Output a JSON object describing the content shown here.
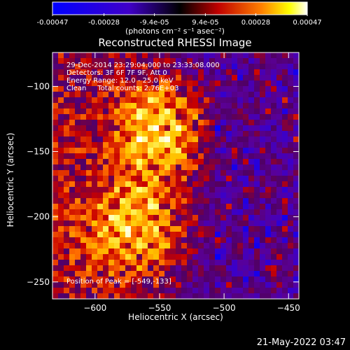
{
  "colorbar": {
    "tick_labels": [
      "-0.00047",
      "-0.00028",
      "-9.4e-05",
      "9.4e-05",
      "0.00028",
      "0.00047"
    ],
    "units_label": "(photons cm⁻² s⁻¹ asec⁻²)",
    "range": [
      -0.00047,
      0.00047
    ]
  },
  "chart_data": {
    "type": "heatmap",
    "title": "Reconstructed RHESSI Image",
    "xlabel": "Heliocentric X (arcsec)",
    "ylabel": "Heliocentric Y (arcsec)",
    "xlim": [
      -633,
      -442
    ],
    "ylim": [
      -263,
      -74
    ],
    "x_ticks": [
      -600,
      -550,
      -500,
      -450
    ],
    "x_tick_labels": [
      "−600",
      "−550",
      "−500",
      "−450"
    ],
    "y_ticks": [
      -100,
      -150,
      -200,
      -250
    ],
    "y_tick_labels": [
      "−100",
      "−150",
      "−200",
      "−250"
    ],
    "peak": {
      "x": -549,
      "y": -133
    },
    "colormap": "rhessi-blue-purple-red-yellow-white",
    "colors": [
      "#0000ff",
      "#5a00c8",
      "#500080",
      "#c80000",
      "#ff8000",
      "#ffff00",
      "#ffffff"
    ]
  },
  "annotations": {
    "time_range": "29-Dec-2014 23:29:04.000 to 23:33:08.000",
    "detectors": "Detectors: 3F 6F 7F 9F, Att 0",
    "energy": "Energy Range: 12.0 - 25.0 keV",
    "method": "Clean     Total counts: 2.76E+03",
    "peak_label": "Position of Peak = [-549,-133]"
  },
  "footer_date": "21-May-2022 03:47"
}
